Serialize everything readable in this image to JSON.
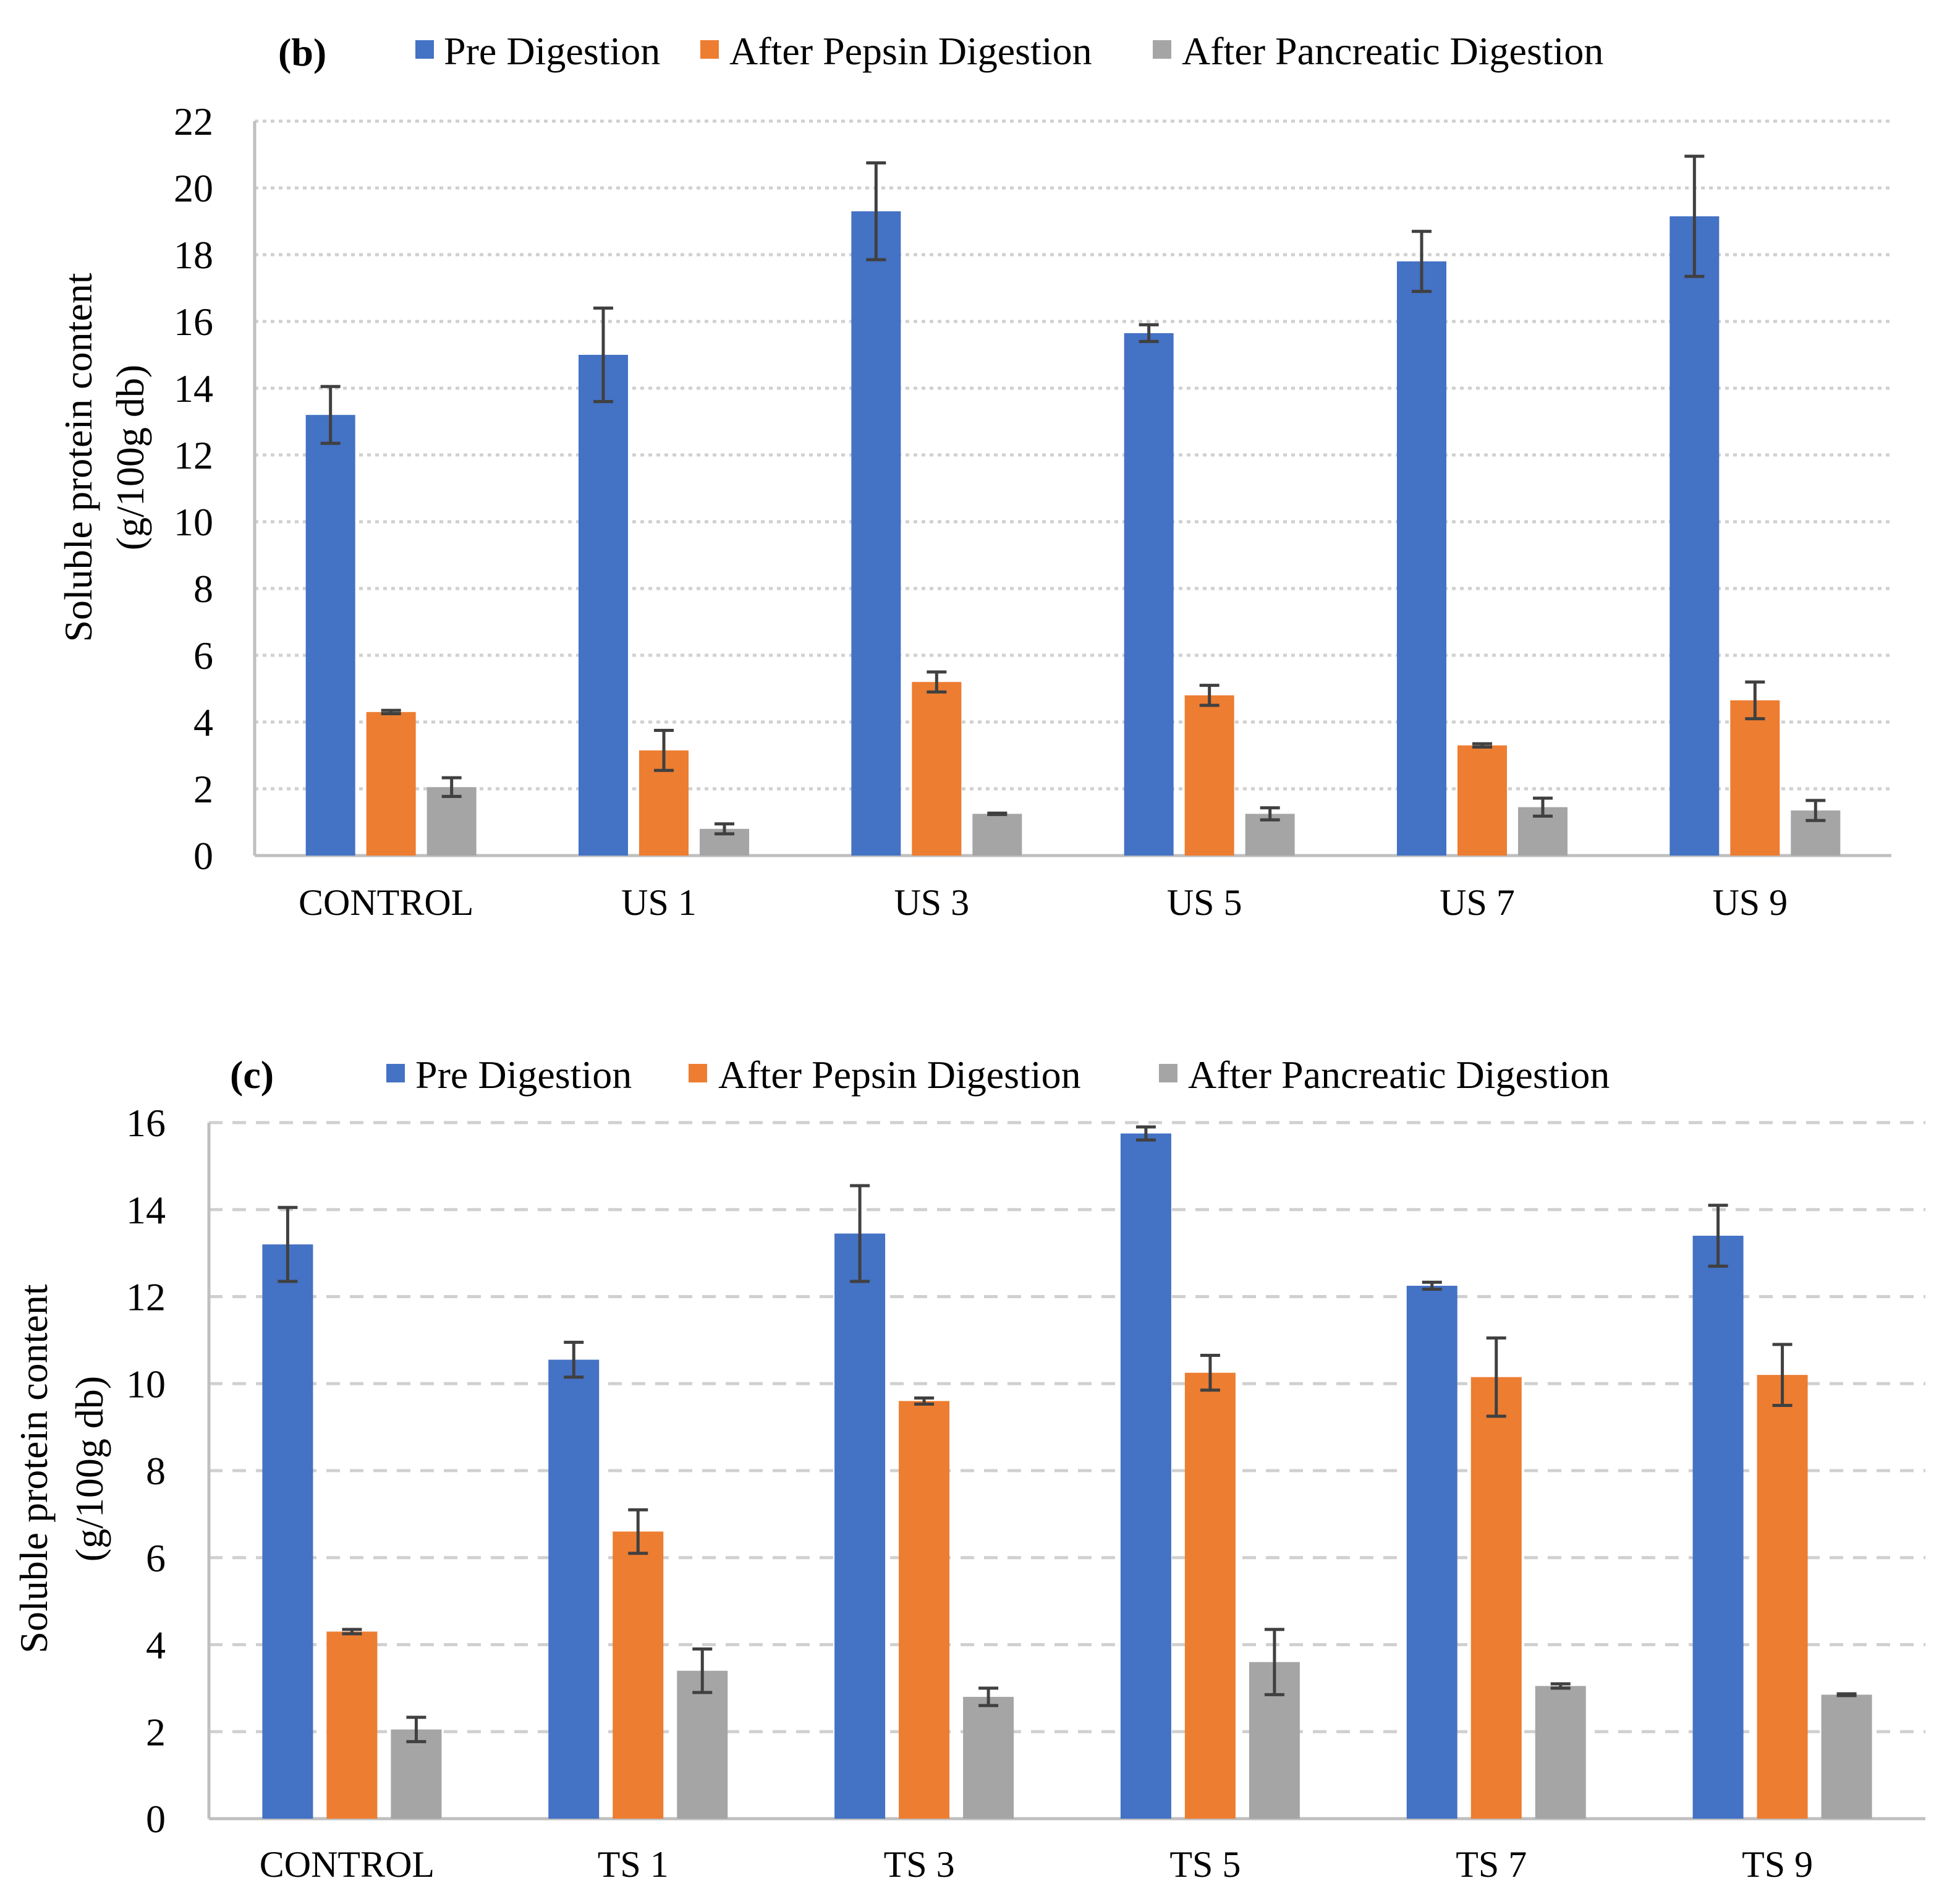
{
  "colors": {
    "pre": "#4472C4",
    "pepsin": "#ED7D31",
    "pancreatic": "#A5A5A5",
    "error": "#404040",
    "grid": "#D0D0D0",
    "axis": "#BFBFBF"
  },
  "chart_data": [
    {
      "type": "bar",
      "panel_label": "(b)",
      "ylabel_line1": "Soluble protein content",
      "ylabel_line2": "(g/100g db)",
      "xlabel": "",
      "ylim": [
        0,
        22
      ],
      "ytick_step": 2,
      "yticks": [
        "0",
        "2",
        "4",
        "6",
        "8",
        "10",
        "12",
        "14",
        "16",
        "18",
        "20",
        "22"
      ],
      "grid": true,
      "legend_position": "top",
      "categories": [
        "CONTROL",
        "US 1",
        "US 3",
        "US 5",
        "US 7",
        "US 9"
      ],
      "series": [
        {
          "name": "Pre Digestion",
          "color_key": "pre",
          "values": [
            13.2,
            15.0,
            19.3,
            15.65,
            17.8,
            19.15
          ],
          "errors": [
            0.85,
            1.4,
            1.45,
            0.25,
            0.9,
            1.8
          ]
        },
        {
          "name": "After Pepsin Digestion",
          "color_key": "pepsin",
          "values": [
            4.3,
            3.15,
            5.2,
            4.8,
            3.3,
            4.65
          ],
          "errors": [
            0.05,
            0.6,
            0.3,
            0.3,
            0.05,
            0.55
          ]
        },
        {
          "name": "After Pancreatic Digestion",
          "color_key": "pancreatic",
          "values": [
            2.05,
            0.8,
            1.25,
            1.25,
            1.45,
            1.35
          ],
          "errors": [
            0.28,
            0.15,
            0.02,
            0.18,
            0.27,
            0.3
          ]
        }
      ]
    },
    {
      "type": "bar",
      "panel_label": "(c)",
      "ylabel_line1": "Soluble protein content",
      "ylabel_line2": "(g/100g db)",
      "xlabel": "",
      "ylim": [
        0,
        16
      ],
      "ytick_step": 2,
      "yticks": [
        "0",
        "2",
        "4",
        "6",
        "8",
        "10",
        "12",
        "14",
        "16"
      ],
      "grid": true,
      "legend_position": "top",
      "categories": [
        "CONTROL",
        "TS 1",
        "TS 3",
        "TS 5",
        "TS 7",
        "TS 9"
      ],
      "series": [
        {
          "name": "Pre Digestion",
          "color_key": "pre",
          "values": [
            13.2,
            10.55,
            13.45,
            15.75,
            12.25,
            13.4
          ],
          "errors": [
            0.85,
            0.4,
            1.1,
            0.15,
            0.08,
            0.7
          ]
        },
        {
          "name": "After Pepsin Digestion",
          "color_key": "pepsin",
          "values": [
            4.3,
            6.6,
            9.6,
            10.25,
            10.15,
            10.2
          ],
          "errors": [
            0.05,
            0.5,
            0.07,
            0.4,
            0.9,
            0.7
          ]
        },
        {
          "name": "After Pancreatic Digestion",
          "color_key": "pancreatic",
          "values": [
            2.05,
            3.4,
            2.8,
            3.6,
            3.05,
            2.85
          ],
          "errors": [
            0.28,
            0.5,
            0.2,
            0.75,
            0.05,
            0.02
          ]
        }
      ]
    }
  ]
}
